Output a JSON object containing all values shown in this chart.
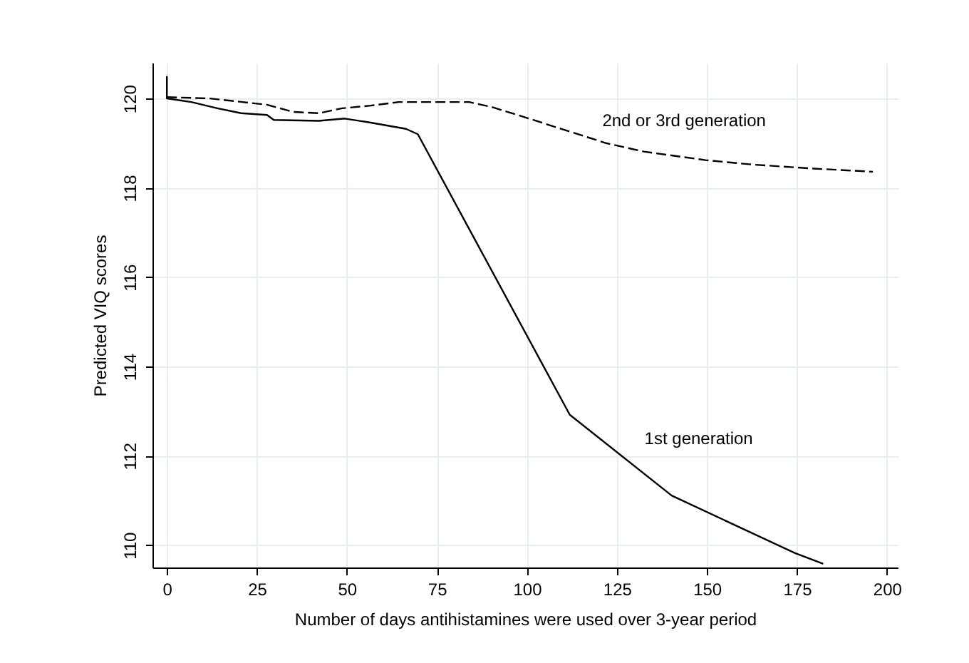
{
  "chart_data": {
    "type": "line",
    "xlabel": "Number of days antihistamines were used over 3-year period",
    "ylabel": "Predicted  VIQ scores",
    "xlim": [
      -4,
      203
    ],
    "ylim": [
      109.5,
      120.8
    ],
    "xticks": [
      0,
      25,
      50,
      75,
      100,
      125,
      150,
      175,
      200
    ],
    "yticks": [
      110,
      112,
      114,
      116,
      118,
      120
    ],
    "grid": true,
    "series": [
      {
        "name": "1st generation",
        "color": "#000000",
        "line_style": "solid",
        "x": [
          0,
          0,
          6.8,
          14,
          20.6,
          27.8,
          29.7,
          42.2,
          49.4,
          56.6,
          66.4,
          69.7,
          111.9,
          140.2,
          174.5,
          182.3
        ],
        "values": [
          120.5,
          120.0,
          119.92,
          119.78,
          119.67,
          119.63,
          119.52,
          119.5,
          119.55,
          119.46,
          119.32,
          119.2,
          112.92,
          111.11,
          109.82,
          109.58
        ]
      },
      {
        "name": "2nd or 3rd generation",
        "color": "#000000",
        "line_style": "dashed",
        "x": [
          0,
          12,
          27.8,
          35,
          42.2,
          48.7,
          56.6,
          64.4,
          84,
          90.6,
          99.8,
          122,
          132.5,
          149.6,
          162.7,
          179.7,
          196.1
        ],
        "values": [
          120.03,
          120.0,
          119.86,
          119.7,
          119.67,
          119.78,
          119.84,
          119.92,
          119.92,
          119.8,
          119.57,
          119.0,
          118.81,
          118.62,
          118.52,
          118.43,
          118.36
        ]
      }
    ]
  }
}
